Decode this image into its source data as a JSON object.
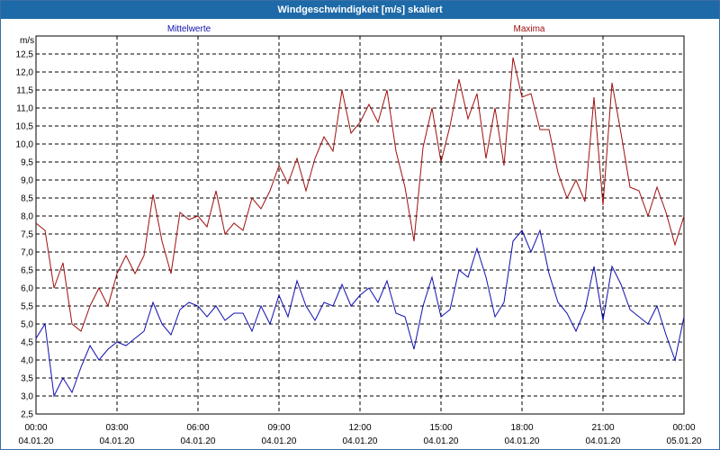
{
  "window": {
    "title": "Windgeschwindigkeit [m/s] skaliert"
  },
  "chart_data": {
    "type": "line",
    "title": "Windgeschwindigkeit [m/s] skaliert",
    "ylabel": "m/s",
    "ylim": [
      2.5,
      13.0
    ],
    "xlim": [
      "2020-01-04 00:00",
      "2020-01-05 00:00"
    ],
    "yticks": [
      "2,5",
      "3,0",
      "3,5",
      "4,0",
      "4,5",
      "5,0",
      "5,5",
      "6,0",
      "6,5",
      "7,0",
      "7,5",
      "8,0",
      "8,5",
      "9,0",
      "9,5",
      "10,0",
      "10,5",
      "11,0",
      "11,5",
      "12,0",
      "12,5"
    ],
    "xticks": [
      {
        "time": "00:00",
        "date": "04.01.20"
      },
      {
        "time": "03:00",
        "date": "04.01.20"
      },
      {
        "time": "06:00",
        "date": "04.01.20"
      },
      {
        "time": "09:00",
        "date": "04.01.20"
      },
      {
        "time": "12:00",
        "date": "04.01.20"
      },
      {
        "time": "15:00",
        "date": "04.01.20"
      },
      {
        "time": "18:00",
        "date": "04.01.20"
      },
      {
        "time": "21:00",
        "date": "04.01.20"
      },
      {
        "time": "00:00",
        "date": "05.01.20"
      }
    ],
    "grid": true,
    "series": [
      {
        "name": "Mittelwerte",
        "color": "#1010b0",
        "x": [
          "00:00",
          "00:20",
          "00:40",
          "01:00",
          "01:20",
          "01:40",
          "02:00",
          "02:20",
          "02:40",
          "03:00",
          "03:20",
          "03:40",
          "04:00",
          "04:20",
          "04:40",
          "05:00",
          "05:20",
          "05:40",
          "06:00",
          "06:20",
          "06:40",
          "07:00",
          "07:20",
          "07:40",
          "08:00",
          "08:20",
          "08:40",
          "09:00",
          "09:20",
          "09:40",
          "10:00",
          "10:20",
          "10:40",
          "11:00",
          "11:20",
          "11:40",
          "12:00",
          "12:20",
          "12:40",
          "13:00",
          "13:20",
          "13:40",
          "14:00",
          "14:20",
          "14:40",
          "15:00",
          "15:20",
          "15:40",
          "16:00",
          "16:20",
          "16:40",
          "17:00",
          "17:20",
          "17:40",
          "18:00",
          "18:20",
          "18:40",
          "19:00",
          "19:20",
          "19:40",
          "20:00",
          "20:20",
          "20:40",
          "21:00",
          "21:20",
          "21:40",
          "22:00",
          "22:20",
          "22:40",
          "23:00",
          "23:20",
          "23:40",
          "24:00"
        ],
        "values": [
          4.6,
          5.0,
          3.0,
          3.5,
          3.1,
          3.8,
          4.4,
          4.0,
          4.3,
          4.5,
          4.4,
          4.6,
          4.8,
          5.6,
          5.0,
          4.7,
          5.4,
          5.6,
          5.5,
          5.2,
          5.5,
          5.1,
          5.3,
          5.3,
          4.8,
          5.5,
          5.0,
          5.8,
          5.2,
          6.2,
          5.5,
          5.1,
          5.6,
          5.5,
          6.1,
          5.5,
          5.8,
          6.0,
          5.6,
          6.2,
          5.3,
          5.2,
          4.3,
          5.5,
          6.3,
          5.2,
          5.4,
          6.5,
          6.3,
          7.1,
          6.3,
          5.2,
          5.6,
          7.3,
          7.6,
          7.0,
          7.6,
          6.4,
          5.6,
          5.3,
          4.8,
          5.4,
          6.6,
          5.1,
          6.6,
          6.1,
          5.4,
          5.2,
          5.0,
          5.5,
          4.7,
          4.0,
          5.2
        ]
      },
      {
        "name": "Maxima",
        "color": "#a01010",
        "x": [
          "00:00",
          "00:20",
          "00:40",
          "01:00",
          "01:20",
          "01:40",
          "02:00",
          "02:20",
          "02:40",
          "03:00",
          "03:20",
          "03:40",
          "04:00",
          "04:20",
          "04:40",
          "05:00",
          "05:20",
          "05:40",
          "06:00",
          "06:20",
          "06:40",
          "07:00",
          "07:20",
          "07:40",
          "08:00",
          "08:20",
          "08:40",
          "09:00",
          "09:20",
          "09:40",
          "10:00",
          "10:20",
          "10:40",
          "11:00",
          "11:20",
          "11:40",
          "12:00",
          "12:20",
          "12:40",
          "13:00",
          "13:20",
          "13:40",
          "14:00",
          "14:20",
          "14:40",
          "15:00",
          "15:20",
          "15:40",
          "16:00",
          "16:20",
          "16:40",
          "17:00",
          "17:20",
          "17:40",
          "18:00",
          "18:20",
          "18:40",
          "19:00",
          "19:20",
          "19:40",
          "20:00",
          "20:20",
          "20:40",
          "21:00",
          "21:20",
          "21:40",
          "22:00",
          "22:20",
          "22:40",
          "23:00",
          "23:20",
          "23:40",
          "24:00"
        ],
        "values": [
          7.8,
          7.6,
          6.0,
          6.7,
          5.0,
          4.8,
          5.5,
          6.0,
          5.5,
          6.4,
          6.9,
          6.4,
          6.9,
          8.6,
          7.3,
          6.4,
          8.1,
          7.9,
          8.0,
          7.7,
          8.7,
          7.5,
          7.8,
          7.6,
          8.5,
          8.2,
          8.7,
          9.4,
          8.9,
          9.6,
          8.7,
          9.6,
          10.2,
          9.8,
          11.5,
          10.3,
          10.6,
          11.1,
          10.6,
          11.5,
          9.8,
          8.8,
          7.3,
          9.9,
          11.0,
          9.5,
          10.5,
          11.8,
          10.7,
          11.4,
          9.6,
          11.0,
          9.4,
          12.4,
          11.3,
          11.4,
          10.4,
          10.4,
          9.2,
          8.5,
          9.0,
          8.4,
          11.3,
          8.3,
          11.7,
          10.3,
          8.8,
          8.7,
          8.0,
          8.8,
          8.1,
          7.2,
          8.0
        ]
      }
    ]
  }
}
